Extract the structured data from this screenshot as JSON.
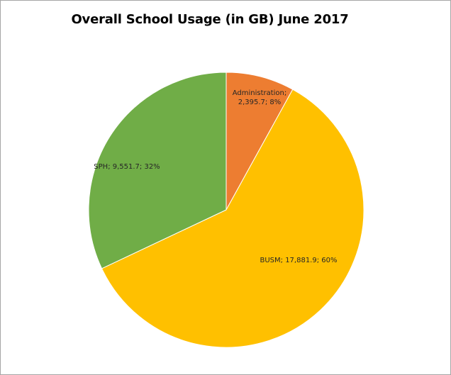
{
  "chart_data": {
    "type": "pie",
    "title": "Overall School Usage (in GB) June 2017",
    "slices": [
      {
        "name": "Administration",
        "value": 2395.7,
        "percent": 8,
        "color": "#ED7D31",
        "label_lines": [
          "Administration;",
          "2,395.7; 8%"
        ]
      },
      {
        "name": "BUSM",
        "value": 17881.9,
        "percent": 60,
        "color": "#FFC000",
        "label_lines": [
          "BUSM; 17,881.9; 60%"
        ]
      },
      {
        "name": "SPH",
        "value": 9551.7,
        "percent": 32,
        "color": "#70AD47",
        "label_lines": [
          "SPH; 9,551.7; 32%"
        ]
      }
    ],
    "legend": "none",
    "data_labels": "inside"
  }
}
